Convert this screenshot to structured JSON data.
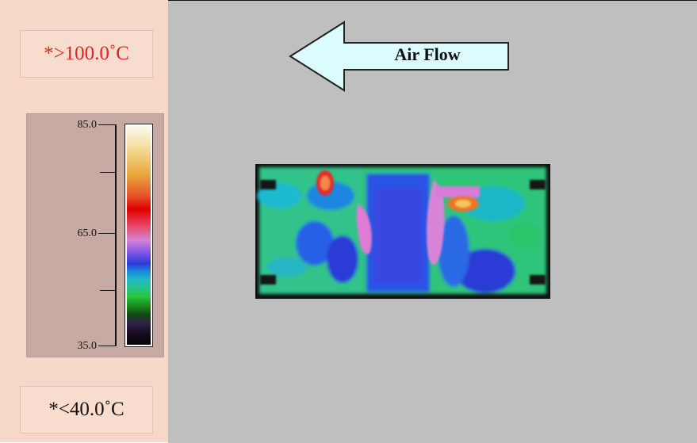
{
  "legend": {
    "max_label": "*>100.0˚C",
    "min_label": "*<40.0˚C",
    "scale_ticks": [
      "85.0",
      "65.0",
      "35.0"
    ],
    "max_color": "#e32222"
  },
  "flow": {
    "label": "Air Flow",
    "arrow_fill": "#dcfbfc"
  },
  "thermal_image": {
    "icon": "thermal-map-image"
  }
}
